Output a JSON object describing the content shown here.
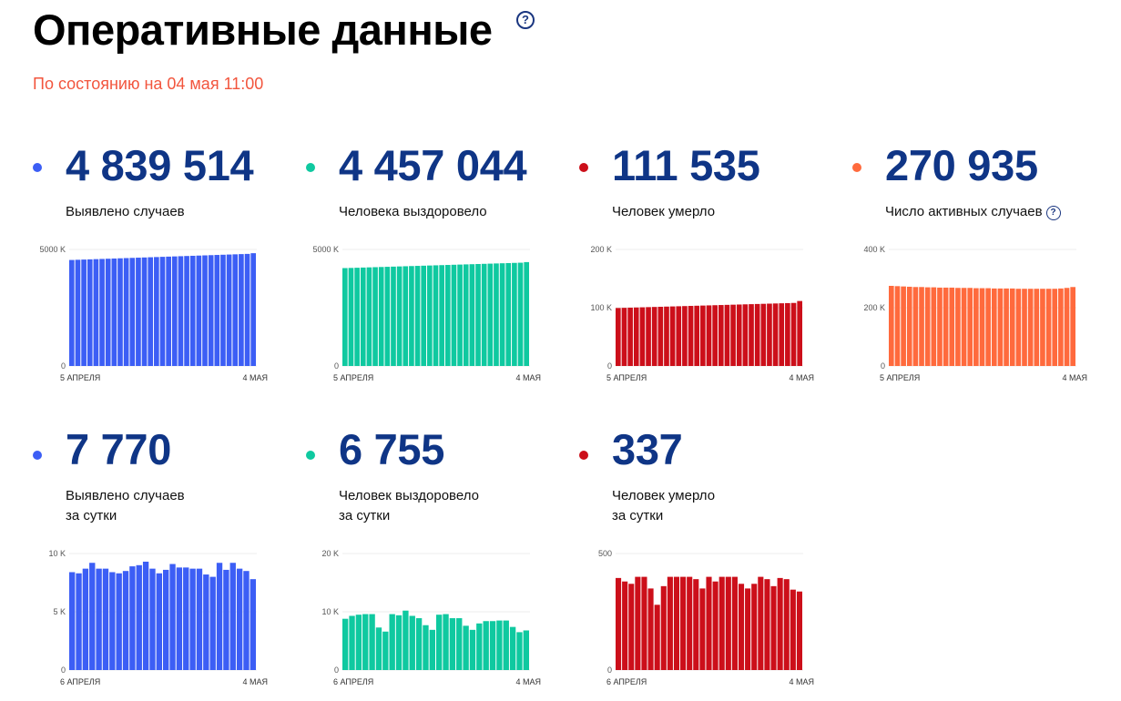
{
  "header": {
    "title": "Оперативные данные",
    "help_glyph": "?",
    "date": "По состоянию на 04 мая 11:00"
  },
  "stats": [
    {
      "value": "4 839 514",
      "label": [
        "Выявлено случаев"
      ],
      "color": "#3c5ef5"
    },
    {
      "value": "4 457 044",
      "label": [
        "Человека выздоровело"
      ],
      "color": "#0fc9a0"
    },
    {
      "value": "111 535",
      "label": [
        "Человек умерло"
      ],
      "color": "#cc0f1a"
    },
    {
      "value": "270 935",
      "label": [
        "Число активных случаев"
      ],
      "color": "#ff6a3d"
    },
    {
      "value": "7 770",
      "label": [
        "Выявлено случаев",
        "за сутки"
      ],
      "color": "#3c5ef5"
    },
    {
      "value": "6 755",
      "label": [
        "Человек выздоровело",
        "за сутки"
      ],
      "color": "#0fc9a0"
    },
    {
      "value": "337",
      "label": [
        "Человек умерло",
        "за сутки"
      ],
      "color": "#cc0f1a"
    }
  ],
  "chart_data": [
    {
      "type": "bar",
      "x_start": "5 АПРЕЛЯ",
      "x_end": "4 МАЯ",
      "yticks": [
        {
          "v": 0,
          "label": "0"
        },
        {
          "v": 5000,
          "label": "5000 K"
        }
      ],
      "ylim": [
        0,
        5000
      ],
      "values": [
        4548,
        4557,
        4566,
        4575,
        4584,
        4593,
        4602,
        4611,
        4620,
        4629,
        4638,
        4647,
        4656,
        4665,
        4674,
        4683,
        4692,
        4701,
        4710,
        4719,
        4728,
        4737,
        4746,
        4755,
        4764,
        4773,
        4782,
        4791,
        4800,
        4809,
        4839
      ]
    },
    {
      "type": "bar",
      "x_start": "5 АПРЕЛЯ",
      "x_end": "4 МАЯ",
      "yticks": [
        {
          "v": 0,
          "label": "0"
        },
        {
          "v": 5000,
          "label": "5000 K"
        }
      ],
      "ylim": [
        0,
        5000
      ],
      "values": [
        4200,
        4207,
        4215,
        4223,
        4231,
        4239,
        4247,
        4255,
        4263,
        4271,
        4279,
        4287,
        4295,
        4303,
        4311,
        4319,
        4327,
        4335,
        4343,
        4351,
        4359,
        4367,
        4375,
        4383,
        4391,
        4399,
        4407,
        4415,
        4423,
        4431,
        4457
      ]
    },
    {
      "type": "bar",
      "x_start": "5 АПРЕЛЯ",
      "x_end": "4 МАЯ",
      "yticks": [
        {
          "v": 0,
          "label": "0"
        },
        {
          "v": 100,
          "label": "100 K"
        },
        {
          "v": 200,
          "label": "200 K"
        }
      ],
      "ylim": [
        0,
        200
      ],
      "values": [
        99.5,
        99.8,
        100.1,
        100.4,
        100.7,
        101.0,
        101.3,
        101.6,
        101.9,
        102.2,
        102.5,
        102.8,
        103.1,
        103.4,
        103.7,
        104.0,
        104.3,
        104.6,
        104.9,
        105.2,
        105.5,
        105.8,
        106.1,
        106.4,
        106.7,
        107.0,
        107.3,
        107.6,
        107.9,
        108.2,
        111.5
      ]
    },
    {
      "type": "bar",
      "x_start": "5 АПРЕЛЯ",
      "x_end": "4 МАЯ",
      "yticks": [
        {
          "v": 0,
          "label": "0"
        },
        {
          "v": 200,
          "label": "200 K"
        },
        {
          "v": 400,
          "label": "400 K"
        }
      ],
      "ylim": [
        0,
        400
      ],
      "values": [
        275,
        274,
        273,
        272,
        271,
        271,
        270,
        270,
        269,
        269,
        269,
        268,
        268,
        268,
        267,
        267,
        267,
        266,
        266,
        266,
        266,
        265,
        265,
        265,
        265,
        265,
        265,
        265,
        266,
        268,
        271
      ]
    },
    {
      "type": "bar",
      "x_start": "6 АПРЕЛЯ",
      "x_end": "4 МАЯ",
      "yticks": [
        {
          "v": 0,
          "label": "0"
        },
        {
          "v": 5,
          "label": "5 K"
        },
        {
          "v": 10,
          "label": "10 K"
        }
      ],
      "ylim": [
        0,
        10
      ],
      "values": [
        8.4,
        8.3,
        8.7,
        9.2,
        8.7,
        8.7,
        8.4,
        8.3,
        8.5,
        8.9,
        9.0,
        9.3,
        8.7,
        8.3,
        8.6,
        9.1,
        8.8,
        8.8,
        8.7,
        8.7,
        8.2,
        8.0,
        9.2,
        8.6,
        9.2,
        8.7,
        8.5,
        7.8
      ]
    },
    {
      "type": "bar",
      "x_start": "6 АПРЕЛЯ",
      "x_end": "4 МАЯ",
      "yticks": [
        {
          "v": 0,
          "label": "0"
        },
        {
          "v": 10,
          "label": "10 K"
        },
        {
          "v": 20,
          "label": "20 K"
        }
      ],
      "ylim": [
        0,
        20
      ],
      "values": [
        8.8,
        9.3,
        9.5,
        9.6,
        9.6,
        7.3,
        6.6,
        9.6,
        9.4,
        10.2,
        9.3,
        8.9,
        7.7,
        6.9,
        9.5,
        9.6,
        8.9,
        8.9,
        7.6,
        6.9,
        8.0,
        8.4,
        8.4,
        8.5,
        8.5,
        7.4,
        6.5,
        6.8
      ]
    },
    {
      "type": "bar",
      "x_start": "6 АПРЕЛЯ",
      "x_end": "4 МАЯ",
      "yticks": [
        {
          "v": 0,
          "label": "0"
        },
        {
          "v": 500,
          "label": "500"
        }
      ],
      "ylim": [
        0,
        500
      ],
      "values": [
        395,
        380,
        370,
        400,
        400,
        350,
        280,
        360,
        400,
        400,
        400,
        400,
        390,
        350,
        400,
        380,
        400,
        400,
        400,
        370,
        350,
        370,
        400,
        390,
        360,
        395,
        390,
        345,
        337
      ]
    }
  ]
}
